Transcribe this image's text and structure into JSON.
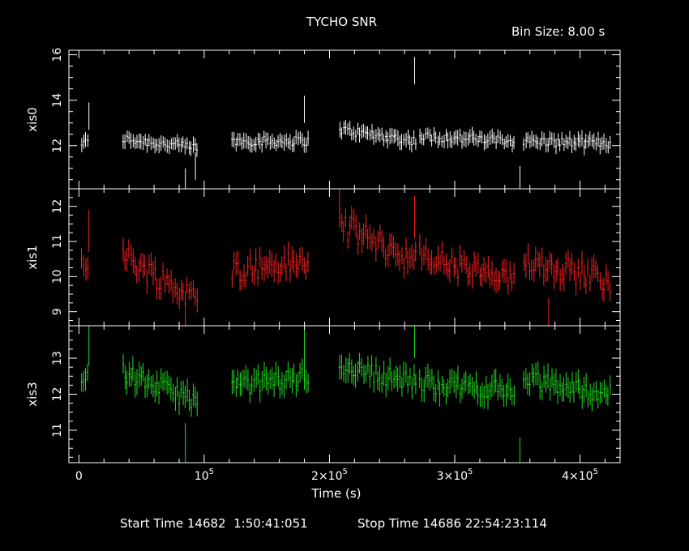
{
  "header": {
    "title": "TYCHO SNR",
    "bin_size": "Bin Size: 8.00 s"
  },
  "footer": {
    "start_time": "Start Time 14682  1:50:41:051",
    "stop_time": "Stop Time 14686 22:54:23:114"
  },
  "chart_data": {
    "type": "scatter",
    "title": "TYCHO SNR",
    "xlabel": "Time (s)",
    "xlim": [
      -8000,
      432000
    ],
    "x_ticks": [
      0,
      100000,
      200000,
      300000,
      400000
    ],
    "x_tick_labels": [
      "0",
      "10^5",
      "2×10^5",
      "3×10^5",
      "4×10^5"
    ],
    "segments": [
      [
        2000,
        8000
      ],
      [
        35000,
        95000
      ],
      [
        122000,
        183000
      ],
      [
        208000,
        270000
      ],
      [
        272000,
        348000
      ],
      [
        355000,
        425000
      ]
    ],
    "panels": [
      {
        "name": "xis0",
        "color": "#ffffff",
        "ylim": [
          10.1,
          16.2
        ],
        "y_ticks": [
          12,
          14,
          16
        ],
        "mean": 12.2,
        "noise": 0.2,
        "err": 0.3,
        "trend": [
          [
            2000,
            12.1
          ],
          [
            35000,
            12.3
          ],
          [
            95000,
            11.9
          ],
          [
            122000,
            12.2
          ],
          [
            183000,
            12.2
          ],
          [
            208000,
            12.7
          ],
          [
            270000,
            12.2
          ],
          [
            272000,
            12.4
          ],
          [
            348000,
            12.2
          ],
          [
            355000,
            12.2
          ],
          [
            425000,
            12.1
          ]
        ],
        "spikes": [
          [
            8000,
            13.3
          ],
          [
            85000,
            10.4
          ],
          [
            93000,
            11.1
          ],
          [
            180000,
            13.6
          ],
          [
            268000,
            15.3
          ],
          [
            352000,
            10.5
          ]
        ]
      },
      {
        "name": "xis1",
        "color": "#ff2020",
        "ylim": [
          8.6,
          12.5
        ],
        "y_ticks": [
          9,
          10,
          11,
          12
        ],
        "mean": 10.3,
        "noise": 0.35,
        "err": 0.3,
        "trend": [
          [
            2000,
            10.5
          ],
          [
            35000,
            10.6
          ],
          [
            95000,
            9.3
          ],
          [
            122000,
            10.2
          ],
          [
            183000,
            10.4
          ],
          [
            208000,
            11.5
          ],
          [
            270000,
            10.4
          ],
          [
            272000,
            10.6
          ],
          [
            348000,
            9.8
          ],
          [
            355000,
            10.5
          ],
          [
            425000,
            9.9
          ]
        ],
        "spikes": [
          [
            8000,
            11.3
          ],
          [
            85000,
            9.0
          ],
          [
            208000,
            12.4
          ],
          [
            268000,
            11.7
          ],
          [
            375000,
            8.8
          ]
        ]
      },
      {
        "name": "xis3",
        "color": "#20e020",
        "ylim": [
          10.1,
          13.9
        ],
        "y_ticks": [
          11,
          12,
          13
        ],
        "mean": 12.3,
        "noise": 0.25,
        "err": 0.3,
        "trend": [
          [
            2000,
            12.4
          ],
          [
            35000,
            12.6
          ],
          [
            95000,
            11.8
          ],
          [
            122000,
            12.2
          ],
          [
            183000,
            12.5
          ],
          [
            208000,
            12.8
          ],
          [
            270000,
            12.3
          ],
          [
            272000,
            12.3
          ],
          [
            348000,
            12.1
          ],
          [
            355000,
            12.4
          ],
          [
            425000,
            12.0
          ]
        ],
        "spikes": [
          [
            8000,
            13.4
          ],
          [
            85000,
            10.6
          ],
          [
            180000,
            13.3
          ],
          [
            268000,
            13.6
          ],
          [
            352000,
            10.2
          ]
        ]
      }
    ]
  }
}
